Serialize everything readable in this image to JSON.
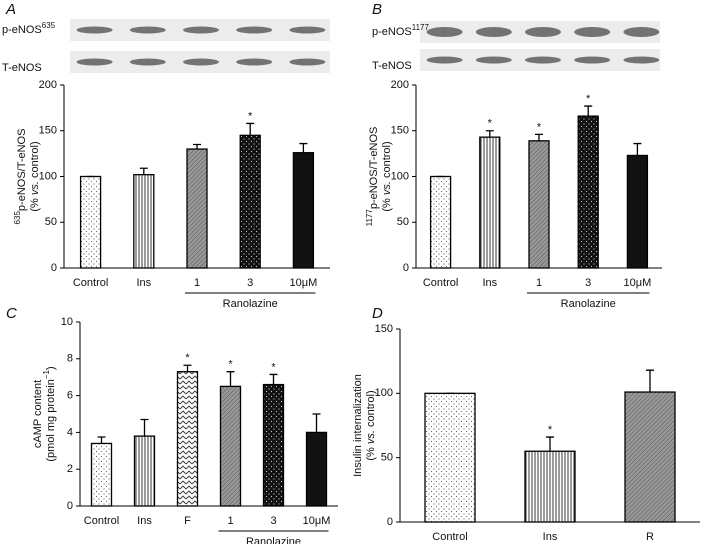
{
  "chart_data": [
    {
      "type": "bar",
      "panel": "A",
      "categories": [
        "Control",
        "Ins",
        "1",
        "3",
        "10μM"
      ],
      "values": [
        100,
        102,
        130,
        145,
        126
      ],
      "errors": [
        0,
        7,
        5,
        13,
        10
      ],
      "patterns": [
        "dots",
        "vlines",
        "gray-hatch",
        "black-dots",
        "black"
      ],
      "significance": [
        null,
        null,
        null,
        "*",
        null
      ],
      "ylim": [
        0,
        200
      ],
      "yticks": [
        0,
        50,
        100,
        150,
        200
      ],
      "ylabel": [
        [
          {
            "text": "635",
            "sup": true
          },
          {
            "text": "p-eNOS/T-eNOS"
          }
        ],
        [
          {
            "text": "(% "
          },
          {
            "text": "vs.",
            "italic": true
          },
          {
            "text": " control)"
          }
        ]
      ],
      "blots": [
        {
          "label": [
            {
              "text": "p-eNOS"
            },
            {
              "text": "635",
              "sup": true
            }
          ]
        },
        {
          "label": [
            {
              "text": "T-eNOS"
            }
          ]
        }
      ],
      "group": {
        "label": "Ranolazine",
        "span": [
          2,
          4
        ]
      }
    },
    {
      "type": "bar",
      "panel": "B",
      "categories": [
        "Control",
        "Ins",
        "1",
        "3",
        "10μM"
      ],
      "values": [
        100,
        143,
        139,
        166,
        123
      ],
      "errors": [
        0,
        7,
        7,
        11,
        13
      ],
      "patterns": [
        "dots",
        "vlines",
        "gray-hatch",
        "black-dots",
        "black"
      ],
      "significance": [
        null,
        "*",
        "*",
        "*",
        null
      ],
      "ylim": [
        0,
        200
      ],
      "yticks": [
        0,
        50,
        100,
        150,
        200
      ],
      "ylabel": [
        [
          {
            "text": "1177",
            "sup": true
          },
          {
            "text": "p-eNOS/T-eNOS"
          }
        ],
        [
          {
            "text": "(% "
          },
          {
            "text": "vs.",
            "italic": true
          },
          {
            "text": " control)"
          }
        ]
      ],
      "blots": [
        {
          "label": [
            {
              "text": "p-eNOS"
            },
            {
              "text": "1177",
              "sup": true
            }
          ]
        },
        {
          "label": [
            {
              "text": "T-eNOS"
            }
          ]
        }
      ],
      "group": {
        "label": "Ranolazine",
        "span": [
          2,
          4
        ]
      }
    },
    {
      "type": "bar",
      "panel": "C",
      "categories": [
        "Control",
        "Ins",
        "F",
        "1",
        "3",
        "10μM"
      ],
      "values": [
        3.4,
        3.8,
        7.3,
        6.5,
        6.6,
        4.0
      ],
      "errors": [
        0.35,
        0.9,
        0.35,
        0.8,
        0.55,
        1.0
      ],
      "patterns": [
        "dots",
        "vlines",
        "zigzag",
        "gray-hatch",
        "black-dots",
        "black"
      ],
      "significance": [
        null,
        null,
        "*",
        "*",
        "*",
        null
      ],
      "ylim": [
        0,
        10
      ],
      "yticks": [
        0,
        2,
        4,
        6,
        8,
        10
      ],
      "ylabel": [
        [
          {
            "text": "cAMP content"
          }
        ],
        [
          {
            "text": "(pmol mg protein"
          },
          {
            "text": "−1",
            "sup": true
          },
          {
            "text": ")"
          }
        ]
      ],
      "group": {
        "label": "Ranolazine",
        "span": [
          3,
          5
        ]
      }
    },
    {
      "type": "bar",
      "panel": "D",
      "categories": [
        "Control",
        "Ins",
        "R"
      ],
      "values": [
        100,
        55,
        101
      ],
      "errors": [
        0,
        11,
        17
      ],
      "patterns": [
        "dots",
        "vlines",
        "gray-hatch"
      ],
      "significance": [
        null,
        "*",
        null
      ],
      "ylim": [
        0,
        150
      ],
      "yticks": [
        0,
        50,
        100,
        150
      ],
      "ylabel": [
        [
          {
            "text": "Insulin internalization"
          }
        ],
        [
          {
            "text": "(% "
          },
          {
            "text": "vs.",
            "italic": true
          },
          {
            "text": " control)"
          }
        ]
      ]
    }
  ]
}
